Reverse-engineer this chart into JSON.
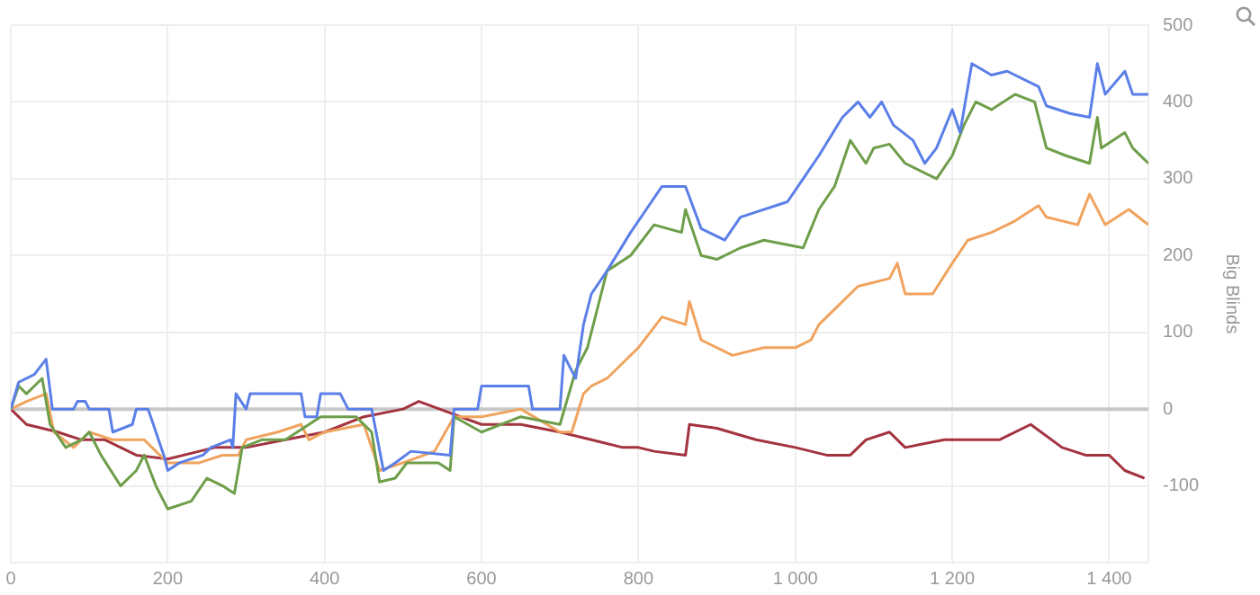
{
  "chart_data": {
    "type": "line",
    "ylabel": "Big Blinds",
    "xlim": [
      0,
      1450
    ],
    "xticks": [
      0,
      200,
      400,
      600,
      800,
      {
        "value": 1000,
        "label": "1 000"
      },
      {
        "value": 1200,
        "label": "1 200"
      },
      {
        "value": 1400,
        "label": "1 400"
      }
    ],
    "ylim": [
      -200,
      500
    ],
    "yticks": [
      {
        "value": -200,
        "label": null
      },
      -100,
      0,
      100,
      200,
      300,
      400,
      500
    ],
    "grid": true,
    "legend": false,
    "marker": "none",
    "line_style": "solid",
    "ref_lines": [
      {
        "axis": "y",
        "value": 0,
        "color": "#c8c8c8"
      }
    ],
    "series": [
      {
        "color": "#5b7fe8",
        "x": [
          0,
          10,
          30,
          45,
          53,
          80,
          85,
          95,
          100,
          125,
          130,
          155,
          160,
          175,
          185,
          195,
          200,
          215,
          245,
          255,
          280,
          283,
          287,
          300,
          305,
          370,
          375,
          390,
          395,
          420,
          430,
          460,
          475,
          490,
          510,
          560,
          565,
          595,
          600,
          660,
          665,
          700,
          705,
          720,
          730,
          740,
          760,
          790,
          810,
          830,
          860,
          880,
          910,
          930,
          990,
          1010,
          1030,
          1060,
          1080,
          1095,
          1110,
          1125,
          1150,
          1165,
          1180,
          1200,
          1210,
          1225,
          1250,
          1270,
          1310,
          1320,
          1350,
          1375,
          1385,
          1395,
          1420,
          1430,
          1450
        ],
        "values": [
          0,
          35,
          45,
          65,
          0,
          0,
          10,
          10,
          0,
          0,
          -30,
          -20,
          0,
          0,
          -30,
          -60,
          -80,
          -70,
          -60,
          -50,
          -40,
          -50,
          20,
          0,
          20,
          20,
          -10,
          -10,
          20,
          20,
          0,
          0,
          -80,
          -70,
          -55,
          -60,
          0,
          0,
          30,
          30,
          0,
          0,
          70,
          40,
          110,
          150,
          180,
          230,
          260,
          290,
          290,
          235,
          220,
          250,
          270,
          300,
          330,
          380,
          400,
          380,
          400,
          370,
          350,
          320,
          340,
          390,
          360,
          450,
          435,
          440,
          420,
          395,
          385,
          380,
          450,
          410,
          440,
          410,
          410
        ]
      },
      {
        "color": "#6e9e4a",
        "x": [
          0,
          10,
          20,
          40,
          50,
          70,
          90,
          100,
          115,
          140,
          160,
          170,
          185,
          200,
          230,
          250,
          270,
          285,
          295,
          320,
          350,
          380,
          395,
          420,
          440,
          460,
          470,
          490,
          505,
          545,
          560,
          565,
          600,
          650,
          700,
          720,
          735,
          760,
          790,
          820,
          855,
          860,
          880,
          900,
          930,
          960,
          1010,
          1030,
          1050,
          1070,
          1090,
          1100,
          1120,
          1140,
          1180,
          1200,
          1215,
          1230,
          1250,
          1280,
          1305,
          1320,
          1345,
          1375,
          1385,
          1390,
          1420,
          1430,
          1450
        ],
        "values": [
          0,
          30,
          20,
          40,
          -20,
          -50,
          -40,
          -30,
          -60,
          -100,
          -80,
          -60,
          -100,
          -130,
          -120,
          -90,
          -100,
          -110,
          -50,
          -40,
          -40,
          -20,
          -10,
          -10,
          -10,
          -30,
          -95,
          -90,
          -70,
          -70,
          -80,
          -10,
          -30,
          -10,
          -20,
          50,
          80,
          180,
          200,
          240,
          230,
          260,
          200,
          195,
          210,
          220,
          210,
          260,
          290,
          350,
          320,
          340,
          345,
          320,
          300,
          330,
          370,
          400,
          390,
          410,
          400,
          340,
          330,
          320,
          380,
          340,
          360,
          340,
          320
        ]
      },
      {
        "color": "#f0a35e",
        "x": [
          0,
          20,
          45,
          55,
          80,
          100,
          130,
          170,
          200,
          240,
          270,
          290,
          300,
          340,
          370,
          380,
          400,
          450,
          470,
          500,
          540,
          565,
          600,
          650,
          700,
          715,
          730,
          740,
          760,
          800,
          830,
          860,
          865,
          880,
          920,
          960,
          1000,
          1020,
          1030,
          1050,
          1080,
          1120,
          1130,
          1140,
          1175,
          1200,
          1220,
          1250,
          1280,
          1310,
          1320,
          1360,
          1375,
          1395,
          1425,
          1450
        ],
        "values": [
          0,
          10,
          20,
          -30,
          -50,
          -30,
          -40,
          -40,
          -70,
          -70,
          -60,
          -60,
          -40,
          -30,
          -20,
          -40,
          -30,
          -20,
          -80,
          -70,
          -55,
          -10,
          -10,
          0,
          -30,
          -30,
          20,
          30,
          40,
          80,
          120,
          110,
          140,
          90,
          70,
          80,
          80,
          90,
          110,
          130,
          160,
          170,
          190,
          150,
          150,
          190,
          220,
          230,
          245,
          265,
          250,
          240,
          280,
          240,
          260,
          240
        ]
      },
      {
        "color": "#a3333f",
        "x": [
          0,
          20,
          60,
          90,
          120,
          160,
          200,
          260,
          300,
          350,
          400,
          450,
          500,
          520,
          560,
          600,
          650,
          700,
          740,
          780,
          800,
          820,
          860,
          865,
          900,
          950,
          1000,
          1040,
          1070,
          1090,
          1120,
          1140,
          1190,
          1220,
          1260,
          1300,
          1340,
          1370,
          1400,
          1420,
          1445
        ],
        "values": [
          0,
          -20,
          -30,
          -40,
          -40,
          -60,
          -65,
          -50,
          -50,
          -40,
          -30,
          -10,
          0,
          10,
          -5,
          -20,
          -20,
          -30,
          -40,
          -50,
          -50,
          -55,
          -60,
          -20,
          -25,
          -40,
          -50,
          -60,
          -60,
          -40,
          -30,
          -50,
          -40,
          -40,
          -40,
          -20,
          -50,
          -60,
          -60,
          -80,
          -90
        ]
      }
    ]
  }
}
